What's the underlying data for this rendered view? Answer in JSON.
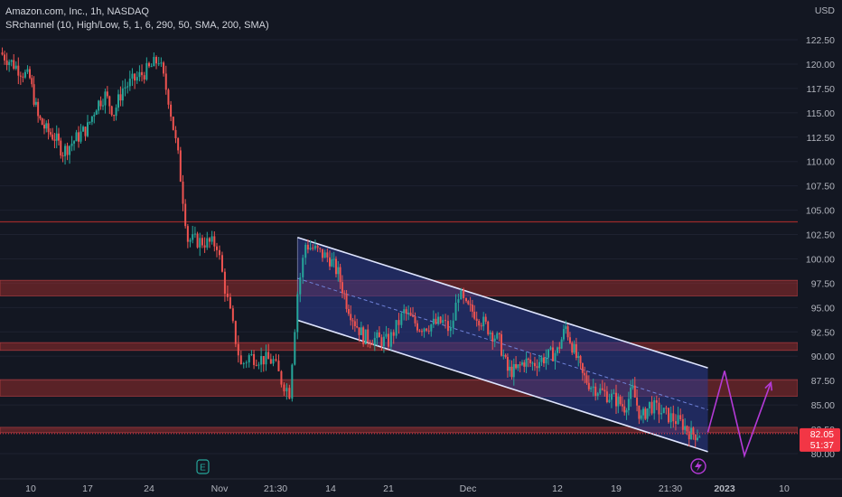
{
  "legend": {
    "title": "Amazon.com, Inc., 1h, NASDAQ",
    "indicator": "SRchannel (10, High/Low, 5, 1, 6, 290, 50, SMA, 200, SMA)"
  },
  "currency": "USD",
  "colors": {
    "background": "#131722",
    "up": "#26a69a",
    "down": "#ef5350",
    "zone_fill": "#b2302f",
    "channel_fill": "#2b3a8f",
    "channel_line": "#e0e6ff",
    "projection": "#b43ad6",
    "price_badge": "#f23645",
    "axis_text": "#b2b5be"
  },
  "icons": {
    "earnings": "earnings-e-icon",
    "dividend": "lightning-icon"
  },
  "current_price": {
    "price": "82.05",
    "countdown": "51:37",
    "value": 82.05
  },
  "chart_data": {
    "type": "candlestick",
    "y_axis": {
      "ticks": [
        80.0,
        82.5,
        85.0,
        87.5,
        90.0,
        92.5,
        95.0,
        97.5,
        100.0,
        102.5,
        105.0,
        107.5,
        110.0,
        112.5,
        115.0,
        117.5,
        120.0,
        122.5
      ],
      "tick_labels": [
        "80.00",
        "82.50",
        "85.00",
        "87.50",
        "90.00",
        "92.50",
        "95.00",
        "97.50",
        "100.00",
        "102.50",
        "105.00",
        "107.50",
        "110.00",
        "112.50",
        "115.00",
        "117.50",
        "120.00",
        "122.50"
      ],
      "range": [
        79.3,
        123.8
      ]
    },
    "x_axis": {
      "tick_labels": [
        "10",
        "17",
        "24",
        "Nov",
        "21:30",
        "14",
        "21",
        "Dec",
        "12",
        "19",
        "21:30",
        "2023",
        "10"
      ],
      "range": [
        "2022-10-07",
        "2023-01-13"
      ]
    },
    "candle_path": [
      [
        "2022-10-07",
        121.2
      ],
      [
        "2022-10-10",
        118.5
      ],
      [
        "2022-10-11",
        114.5
      ],
      [
        "2022-10-12",
        113.2
      ],
      [
        "2022-10-13",
        112.5
      ],
      [
        "2022-10-14",
        111.0
      ],
      [
        "2022-10-17",
        113.5
      ],
      [
        "2022-10-18",
        115.8
      ],
      [
        "2022-10-19",
        116.8
      ],
      [
        "2022-10-20",
        115.0
      ],
      [
        "2022-10-21",
        117.5
      ],
      [
        "2022-10-24",
        119.5
      ],
      [
        "2022-10-25",
        120.5
      ],
      [
        "2022-10-26",
        116.5
      ],
      [
        "2022-10-27",
        110.5
      ],
      [
        "2022-10-28",
        102.0
      ],
      [
        "2022-10-31",
        101.5
      ],
      [
        "2022-11-01",
        97.0
      ],
      [
        "2022-11-02",
        93.0
      ],
      [
        "2022-11-03",
        89.0
      ],
      [
        "2022-11-04",
        90.0
      ],
      [
        "2022-11-07",
        89.5
      ],
      [
        "2022-11-08",
        87.5
      ],
      [
        "2022-11-09",
        86.3
      ],
      [
        "2022-11-10",
        96.5
      ],
      [
        "2022-11-11",
        101.5
      ],
      [
        "2022-11-14",
        100.0
      ],
      [
        "2022-11-15",
        98.5
      ],
      [
        "2022-11-16",
        95.5
      ],
      [
        "2022-11-17",
        93.5
      ],
      [
        "2022-11-18",
        92.0
      ],
      [
        "2022-11-21",
        91.5
      ],
      [
        "2022-11-22",
        93.0
      ],
      [
        "2022-11-23",
        94.5
      ],
      [
        "2022-11-25",
        93.0
      ],
      [
        "2022-11-28",
        93.5
      ],
      [
        "2022-11-29",
        92.5
      ],
      [
        "2022-11-30",
        96.5
      ],
      [
        "2022-12-01",
        95.0
      ],
      [
        "2022-12-02",
        94.5
      ],
      [
        "2022-12-05",
        91.5
      ],
      [
        "2022-12-06",
        88.5
      ],
      [
        "2022-12-07",
        88.5
      ],
      [
        "2022-12-08",
        89.5
      ],
      [
        "2022-12-09",
        89.2
      ],
      [
        "2022-12-12",
        90.5
      ],
      [
        "2022-12-13",
        93.0
      ],
      [
        "2022-12-14",
        90.5
      ],
      [
        "2022-12-15",
        88.0
      ],
      [
        "2022-12-16",
        87.0
      ],
      [
        "2022-12-19",
        85.5
      ],
      [
        "2022-12-20",
        84.8
      ],
      [
        "2022-12-21",
        86.5
      ],
      [
        "2022-12-22",
        83.5
      ],
      [
        "2022-12-23",
        85.0
      ],
      [
        "2022-12-27",
        83.0
      ],
      [
        "2022-12-28",
        82.0
      ],
      [
        "2022-12-29",
        82.05
      ]
    ],
    "horizontal_levels": [
      103.8
    ],
    "sr_zones": [
      [
        96.2,
        97.8
      ],
      [
        90.6,
        91.4
      ],
      [
        85.9,
        87.6
      ],
      [
        82.15,
        82.7
      ]
    ],
    "channel": {
      "upper": [
        [
          "2022-11-10",
          102.2
        ],
        [
          "2022-12-30",
          88.8
        ]
      ],
      "lower": [
        [
          "2022-11-10",
          93.7
        ],
        [
          "2022-12-30",
          80.2
        ]
      ],
      "mid": [
        [
          "2022-11-10",
          98.0
        ],
        [
          "2022-12-30",
          84.5
        ]
      ]
    },
    "projection": [
      [
        "2022-12-30",
        82.2
      ],
      [
        "2023-01-01",
        88.5
      ],
      [
        "2023-01-04",
        79.8
      ],
      [
        "2023-01-08",
        87.3
      ]
    ]
  }
}
